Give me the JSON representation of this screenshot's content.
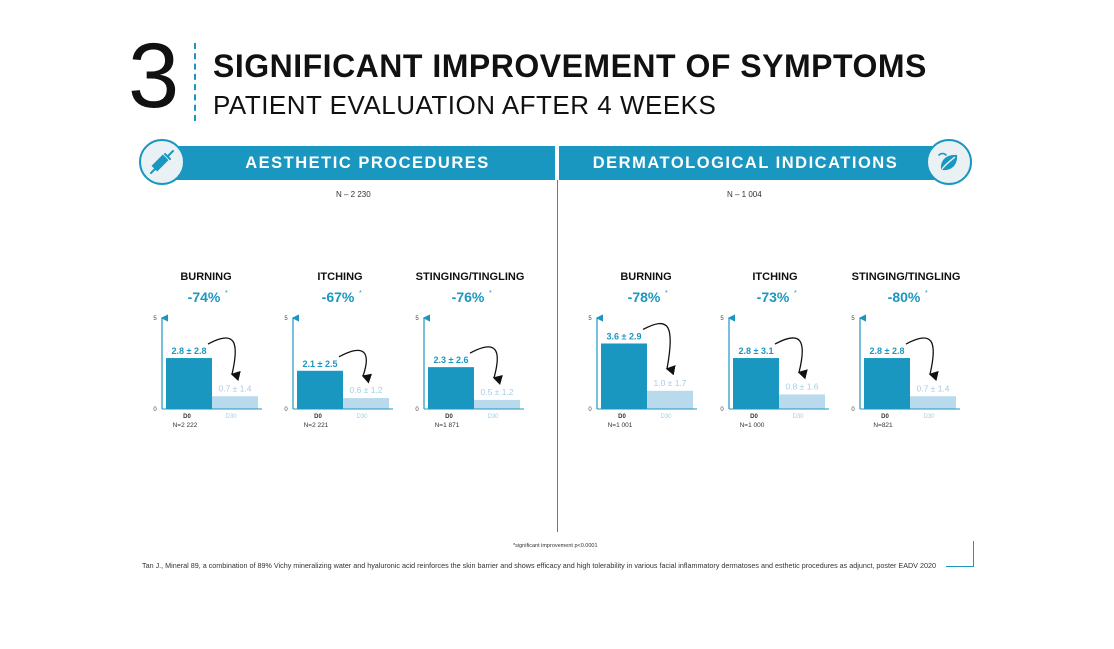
{
  "header": {
    "number": "3",
    "title": "SIGNIFICANT IMPROVEMENT OF SYMPTOMS",
    "subtitle": "PATIENT EVALUATION AFTER 4 WEEKS"
  },
  "colors": {
    "accent": "#1a97c0",
    "bar_d0": "#1a97c0",
    "bar_d30": "#b9d9ec",
    "text_d30": "#a6cde6"
  },
  "panels": [
    {
      "label": "AESTHETIC PROCEDURES",
      "n_label": "N – 2 230",
      "icon": "syringe-icon"
    },
    {
      "label": "DERMATOLOGICAL INDICATIONS",
      "n_label": "N – 1 004",
      "icon": "skin-leaf-icon"
    }
  ],
  "chart_data": [
    {
      "type": "bar",
      "title": "BURNING",
      "reduction": "-74%",
      "reduction_mark": "*",
      "categories": [
        "D0",
        "D30"
      ],
      "values": [
        2.8,
        0.7
      ],
      "value_labels": [
        "2.8 ± 2.8",
        "0.7 ± 1.4"
      ],
      "n": "N=2 222",
      "ylim": [
        0,
        5
      ],
      "y_ticks": [
        "0",
        "5"
      ]
    },
    {
      "type": "bar",
      "title": "ITCHING",
      "reduction": "-67%",
      "reduction_mark": "*",
      "categories": [
        "D0",
        "D30"
      ],
      "values": [
        2.1,
        0.6
      ],
      "value_labels": [
        "2.1 ± 2.5",
        "0.6 ± 1.2"
      ],
      "n": "N=2 221",
      "ylim": [
        0,
        5
      ],
      "y_ticks": [
        "0",
        "5"
      ]
    },
    {
      "type": "bar",
      "title": "STINGING/TINGLING",
      "reduction": "-76%",
      "reduction_mark": "*",
      "categories": [
        "D0",
        "D30"
      ],
      "values": [
        2.3,
        0.5
      ],
      "value_labels": [
        "2.3 ± 2.6",
        "0.5 ± 1.2"
      ],
      "n": "N=1 871",
      "ylim": [
        0,
        5
      ],
      "y_ticks": [
        "0",
        "5"
      ]
    },
    {
      "type": "bar",
      "title": "BURNING",
      "reduction": "-78%",
      "reduction_mark": "*",
      "categories": [
        "D0",
        "D30"
      ],
      "values": [
        3.6,
        1.0
      ],
      "value_labels": [
        "3.6 ± 2.9",
        "1.0 ± 1.7"
      ],
      "n": "N=1 001",
      "ylim": [
        0,
        5
      ],
      "y_ticks": [
        "0",
        "5"
      ]
    },
    {
      "type": "bar",
      "title": "ITCHING",
      "reduction": "-73%",
      "reduction_mark": "*",
      "categories": [
        "D0",
        "D30"
      ],
      "values": [
        2.8,
        0.8
      ],
      "value_labels": [
        "2.8 ± 3.1",
        "0.8 ± 1.6"
      ],
      "n": "N=1 000",
      "ylim": [
        0,
        5
      ],
      "y_ticks": [
        "0",
        "5"
      ]
    },
    {
      "type": "bar",
      "title": "STINGING/TINGLING",
      "reduction": "-80%",
      "reduction_mark": "*",
      "categories": [
        "D0",
        "D30"
      ],
      "values": [
        2.8,
        0.7
      ],
      "value_labels": [
        "2.8 ± 2.8",
        "0.7 ± 1.4"
      ],
      "n": "N=821",
      "ylim": [
        0,
        5
      ],
      "y_ticks": [
        "0",
        "5"
      ]
    }
  ],
  "footer": {
    "footnote": "*significant improvement p<0.0001",
    "citation": "Tan J., Mineral 89, a combination of 89% Vichy mineralizing water and hyaluronic acid reinforces the skin barrier and shows efficacy and high tolerability in various facial inflammatory dermatoses and esthetic procedures as adjunct, poster EADV 2020"
  }
}
